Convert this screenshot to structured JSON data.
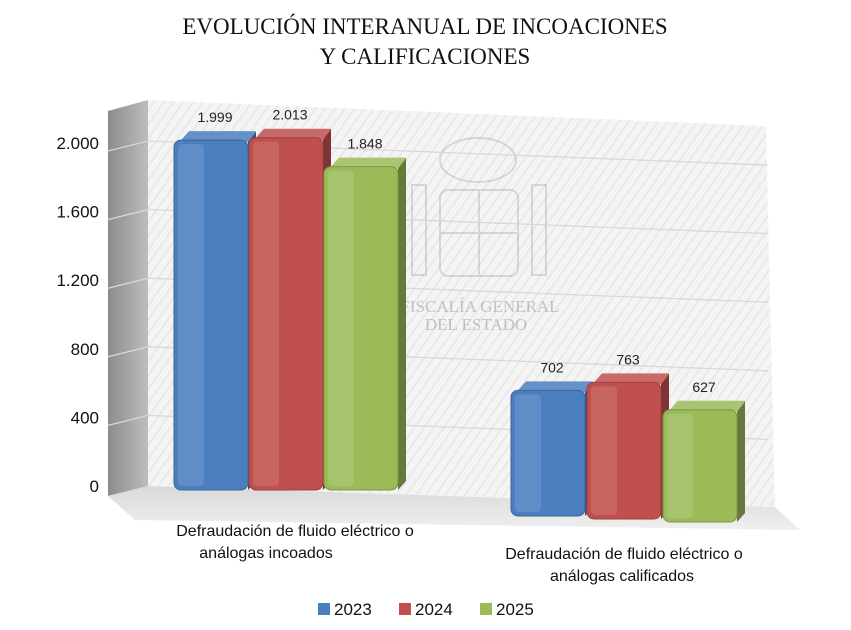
{
  "chart_data": {
    "type": "bar",
    "title": [
      "EVOLUCIÓN INTERANUAL DE INCOACIONES",
      "Y CALIFICACIONES"
    ],
    "categories": [
      [
        "Defraudación de fluido eléctrico o",
        "análogas incoados"
      ],
      [
        "Defraudación de fluido eléctrico o",
        "análogas calificados"
      ]
    ],
    "series": [
      {
        "name": "2023",
        "color": "#4a7ebf",
        "values": [
          1999,
          702
        ],
        "labels": [
          "1.999",
          "702"
        ]
      },
      {
        "name": "2024",
        "color": "#c0504d",
        "values": [
          2013,
          763
        ],
        "labels": [
          "2.013",
          "763"
        ]
      },
      {
        "name": "2025",
        "color": "#9bbb59",
        "values": [
          1848,
          627
        ],
        "labels": [
          "1.848",
          "627"
        ]
      }
    ],
    "yticks": [
      {
        "value": 0,
        "label": "0"
      },
      {
        "value": 400,
        "label": "400"
      },
      {
        "value": 800,
        "label": "800"
      },
      {
        "value": 1200,
        "label": "1.200"
      },
      {
        "value": 1600,
        "label": "1.600"
      },
      {
        "value": 2000,
        "label": "2.000"
      }
    ],
    "ylim": [
      0,
      2000
    ],
    "grid": true,
    "legend_position": "bottom",
    "watermark": [
      "FISCALÍA GENERAL",
      "DEL ESTADO"
    ]
  }
}
